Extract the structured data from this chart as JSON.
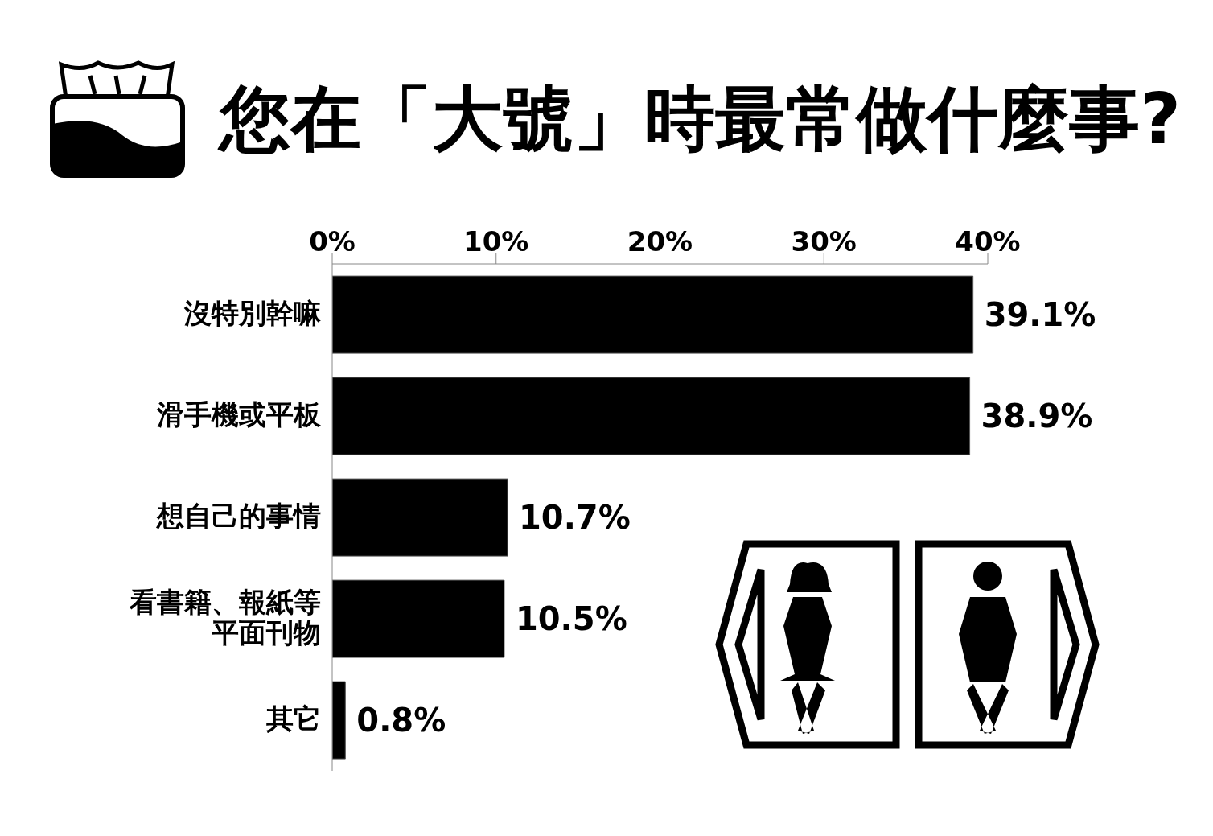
{
  "chart_data": {
    "type": "bar",
    "orientation": "horizontal",
    "title": "您在「大號」時最常做什麼事?",
    "categories": [
      "沒特別幹嘛",
      "滑手機或平板",
      "想自己的事情",
      "看書籍、報紙等平面刊物",
      "其它"
    ],
    "values": [
      39.1,
      38.9,
      10.7,
      10.5,
      0.8
    ],
    "color": "#000000",
    "value_labels": [
      "39.1%",
      "38.9%",
      "10.7%",
      "10.5%",
      "0.8%"
    ],
    "xlim": [
      0,
      40
    ],
    "xticks": [
      {
        "value": 0,
        "label": "0%"
      },
      {
        "value": 10,
        "label": "10%"
      },
      {
        "value": 20,
        "label": "20%"
      },
      {
        "value": 30,
        "label": "30%"
      },
      {
        "value": 40,
        "label": "40%"
      }
    ],
    "grid": false,
    "legend": false
  }
}
